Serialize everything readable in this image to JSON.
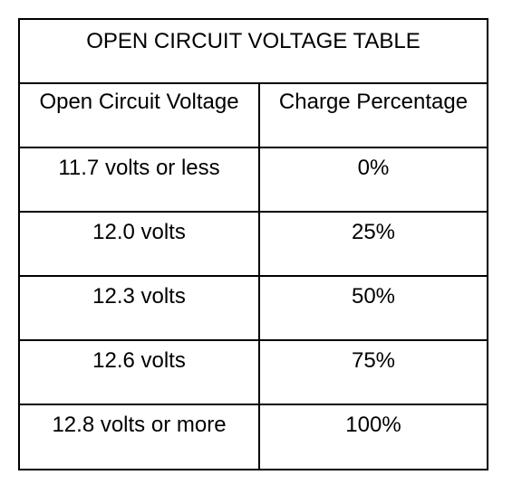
{
  "table": {
    "title": "OPEN CIRCUIT VOLTAGE TABLE",
    "columns": [
      "Open Circuit Voltage",
      "Charge Percentage"
    ],
    "rows": [
      [
        "11.7 volts or less",
        "0%"
      ],
      [
        "12.0 volts",
        "25%"
      ],
      [
        "12.3 volts",
        "50%"
      ],
      [
        "12.6 volts",
        "75%"
      ],
      [
        "12.8 volts or more",
        "100%"
      ]
    ]
  }
}
